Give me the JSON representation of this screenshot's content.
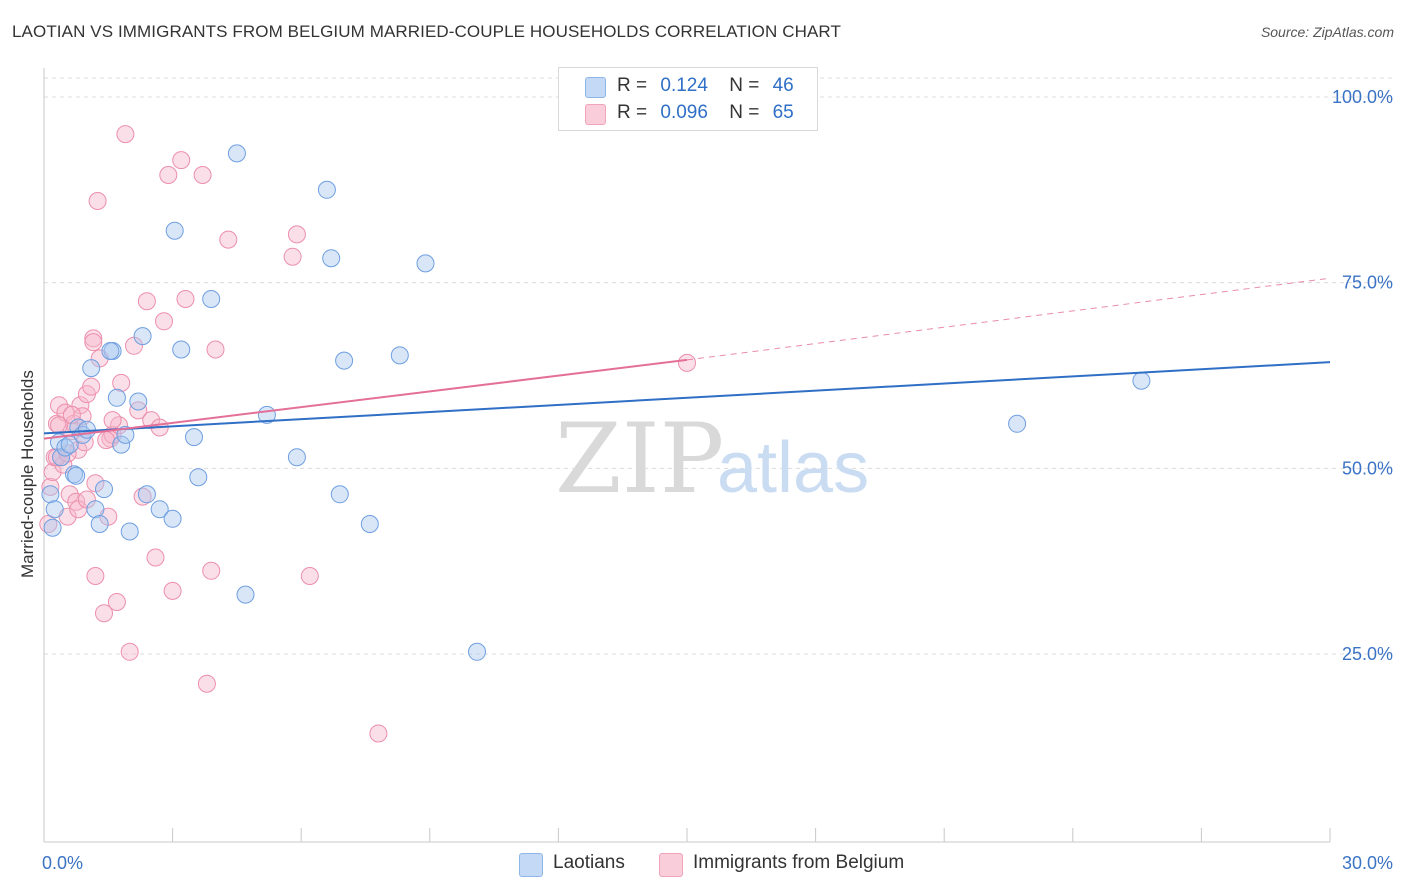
{
  "header": {
    "title": "LAOTIAN VS IMMIGRANTS FROM BELGIUM MARRIED-COUPLE HOUSEHOLDS CORRELATION CHART",
    "source": "Source: ZipAtlas.com"
  },
  "watermark": {
    "zip": "ZIP",
    "atlas": "atlas"
  },
  "legend": {
    "rows": [
      {
        "r_label": "R =",
        "r_value": "0.124",
        "n_label": "N =",
        "n_value": "46",
        "color": "#a8c8f0"
      },
      {
        "r_label": "R =",
        "r_value": "0.096",
        "n_label": "N =",
        "n_value": "65",
        "color": "#f6b8cb"
      }
    ]
  },
  "bottom_legend": {
    "laotians": "Laotians",
    "belgium": "Immigrants from Belgium"
  },
  "chart_data": {
    "type": "scatter",
    "title": "LAOTIAN VS IMMIGRANTS FROM BELGIUM MARRIED-COUPLE HOUSEHOLDS CORRELATION CHART",
    "xlabel": "",
    "ylabel": "Married-couple Households",
    "xlim": [
      0,
      30
    ],
    "ylim": [
      0,
      105
    ],
    "x_tick_labels": [
      "0.0%",
      "30.0%"
    ],
    "y_tick_labels": [
      "25.0%",
      "50.0%",
      "75.0%",
      "100.0%"
    ],
    "y_ticks": [
      25,
      50,
      75,
      100
    ],
    "grid": true,
    "colors": {
      "laotians": "#2f6fc6",
      "belgium": "#e46f98",
      "tick": "#3b73c4"
    },
    "series": [
      {
        "name": "Laotians",
        "r": 0.124,
        "n": 46,
        "trend": {
          "x0": 0,
          "y0": 54.7,
          "x1": 30,
          "y1": 64.3
        },
        "points": [
          [
            0.15,
            46.5
          ],
          [
            0.25,
            44.5
          ],
          [
            0.35,
            53.5
          ],
          [
            0.4,
            51.5
          ],
          [
            0.5,
            52.8
          ],
          [
            0.6,
            53.2
          ],
          [
            0.7,
            49.2
          ],
          [
            0.75,
            49.0
          ],
          [
            0.8,
            55.5
          ],
          [
            0.9,
            54.5
          ],
          [
            1.0,
            55.2
          ],
          [
            1.1,
            63.5
          ],
          [
            1.2,
            44.5
          ],
          [
            1.3,
            42.5
          ],
          [
            1.4,
            47.2
          ],
          [
            1.6,
            65.8
          ],
          [
            1.7,
            59.5
          ],
          [
            1.8,
            53.2
          ],
          [
            1.9,
            54.5
          ],
          [
            2.0,
            41.5
          ],
          [
            2.2,
            59.0
          ],
          [
            2.3,
            67.8
          ],
          [
            2.4,
            46.5
          ],
          [
            2.7,
            44.5
          ],
          [
            3.0,
            43.2
          ],
          [
            3.05,
            82.0
          ],
          [
            3.2,
            66.0
          ],
          [
            3.5,
            54.2
          ],
          [
            3.6,
            48.8
          ],
          [
            3.9,
            72.8
          ],
          [
            4.5,
            92.4
          ],
          [
            4.7,
            33.0
          ],
          [
            5.2,
            57.2
          ],
          [
            5.9,
            51.5
          ],
          [
            6.6,
            87.5
          ],
          [
            6.7,
            78.3
          ],
          [
            6.9,
            46.5
          ],
          [
            7.0,
            64.5
          ],
          [
            7.6,
            42.5
          ],
          [
            8.3,
            65.2
          ],
          [
            8.9,
            77.6
          ],
          [
            10.1,
            25.3
          ],
          [
            22.7,
            56.0
          ],
          [
            25.6,
            61.8
          ],
          [
            1.55,
            65.8
          ],
          [
            0.2,
            42.0
          ]
        ]
      },
      {
        "name": "Immigrants from Belgium",
        "r": 0.096,
        "n": 65,
        "trend": {
          "x0": 0,
          "y0": 54.0,
          "x1": 15.0,
          "y1": 64.6,
          "dash_x1": 30,
          "dash_y1": 75.6
        },
        "points": [
          [
            0.1,
            42.5
          ],
          [
            0.15,
            47.5
          ],
          [
            0.2,
            49.5
          ],
          [
            0.25,
            51.5
          ],
          [
            0.3,
            56.0
          ],
          [
            0.35,
            58.5
          ],
          [
            0.4,
            51.5
          ],
          [
            0.45,
            50.5
          ],
          [
            0.5,
            57.5
          ],
          [
            0.55,
            43.5
          ],
          [
            0.6,
            46.5
          ],
          [
            0.65,
            55.0
          ],
          [
            0.7,
            56.0
          ],
          [
            0.75,
            45.5
          ],
          [
            0.8,
            52.5
          ],
          [
            0.85,
            58.5
          ],
          [
            0.9,
            57.0
          ],
          [
            0.95,
            53.5
          ],
          [
            1.0,
            60.0
          ],
          [
            1.1,
            61.0
          ],
          [
            1.15,
            67.5
          ],
          [
            1.2,
            35.5
          ],
          [
            1.25,
            86.0
          ],
          [
            1.3,
            64.8
          ],
          [
            1.4,
            30.5
          ],
          [
            1.5,
            43.5
          ],
          [
            1.55,
            54.0
          ],
          [
            1.6,
            54.5
          ],
          [
            1.7,
            32.0
          ],
          [
            1.75,
            55.8
          ],
          [
            1.8,
            61.5
          ],
          [
            1.9,
            95.0
          ],
          [
            2.0,
            25.3
          ],
          [
            2.1,
            66.5
          ],
          [
            2.2,
            57.8
          ],
          [
            2.3,
            46.2
          ],
          [
            2.4,
            72.5
          ],
          [
            2.5,
            56.5
          ],
          [
            2.6,
            38.0
          ],
          [
            2.7,
            55.5
          ],
          [
            2.8,
            69.8
          ],
          [
            2.9,
            89.5
          ],
          [
            3.0,
            33.5
          ],
          [
            3.2,
            91.5
          ],
          [
            3.3,
            72.8
          ],
          [
            3.7,
            89.5
          ],
          [
            3.8,
            21.0
          ],
          [
            3.9,
            36.2
          ],
          [
            4.0,
            66.0
          ],
          [
            4.3,
            80.8
          ],
          [
            5.8,
            78.5
          ],
          [
            5.9,
            81.5
          ],
          [
            6.2,
            35.5
          ],
          [
            7.8,
            14.3
          ],
          [
            15.0,
            64.2
          ],
          [
            0.3,
            51.5
          ],
          [
            0.55,
            52.0
          ],
          [
            0.8,
            44.5
          ],
          [
            1.0,
            45.8
          ],
          [
            1.2,
            48.0
          ],
          [
            1.45,
            53.8
          ],
          [
            1.6,
            56.5
          ],
          [
            0.35,
            55.8
          ],
          [
            0.65,
            57.2
          ],
          [
            1.15,
            67.0
          ]
        ]
      }
    ]
  }
}
